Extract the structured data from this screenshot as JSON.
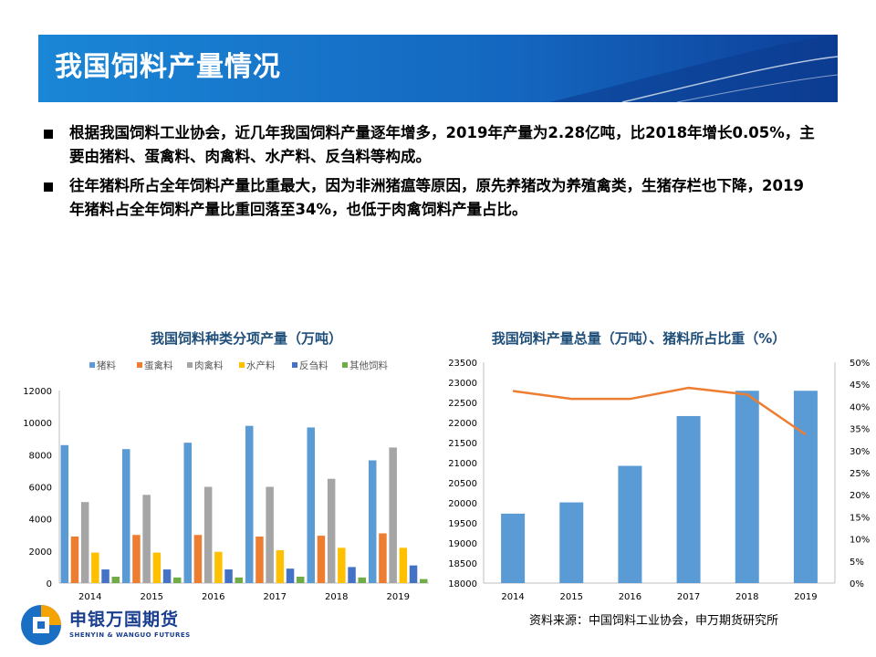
{
  "header": {
    "title": "我国饲料产量情况"
  },
  "bullets": [
    {
      "text": "根据我国饲料工业协会，近几年我国饲料产量逐年增多，2019年产量为2.28亿吨，比2018年增长0.05%，主要由猪料、蛋禽料、肉禽料、水产料、反刍料等构成。"
    },
    {
      "text": "往年猪料所占全年饲料产量比重最大，因为非洲猪瘟等原因，原先养猪改为养殖禽类，生猪存栏也下降，2019年猪料占全年饲料产量比重回落至34%，也低于肉禽饲料产量占比。"
    }
  ],
  "source": "资料来源：中国饲料工业协会，申万期货研究所",
  "logo": {
    "cn": "申银万国期货",
    "en": "SHENYIN & WANGUO FUTURES"
  },
  "chart_data": [
    {
      "type": "bar",
      "title": "我国饲料种类分项产量（万吨）",
      "categories": [
        "2014",
        "2015",
        "2016",
        "2017",
        "2018",
        "2019"
      ],
      "ylim": [
        0,
        12000
      ],
      "yticks": [
        0,
        2000,
        4000,
        6000,
        8000,
        10000,
        12000
      ],
      "grid": false,
      "legend": "top",
      "series": [
        {
          "name": "猪料",
          "color": "#5b9bd5",
          "values": [
            8600,
            8350,
            8750,
            9800,
            9700,
            7650
          ]
        },
        {
          "name": "蛋禽料",
          "color": "#ed7d31",
          "values": [
            2900,
            3000,
            3000,
            2900,
            2950,
            3100
          ]
        },
        {
          "name": "肉禽料",
          "color": "#a5a5a5",
          "values": [
            5050,
            5500,
            6000,
            6000,
            6500,
            8450
          ]
        },
        {
          "name": "水产料",
          "color": "#ffc000",
          "values": [
            1900,
            1900,
            1950,
            2050,
            2200,
            2200
          ]
        },
        {
          "name": "反刍料",
          "color": "#4472c4",
          "values": [
            850,
            850,
            850,
            900,
            1000,
            1100
          ]
        },
        {
          "name": "其他饲料",
          "color": "#70ad47",
          "values": [
            400,
            350,
            350,
            400,
            350,
            250
          ]
        }
      ]
    },
    {
      "type": "bar+line",
      "title": "我国饲料产量总量（万吨）、猪料所占比重（%）",
      "categories": [
        "2014",
        "2015",
        "2016",
        "2017",
        "2018",
        "2019"
      ],
      "bar": {
        "color": "#5b9bd5",
        "values": [
          19730,
          20010,
          20920,
          22160,
          22790,
          22790
        ],
        "ylim": [
          18000,
          23500
        ],
        "yticks": [
          18000,
          18500,
          19000,
          19500,
          20000,
          20500,
          21000,
          21500,
          22000,
          22500,
          23000,
          23500
        ]
      },
      "line": {
        "color": "#ed7d31",
        "values": [
          43.5,
          41.7,
          41.7,
          44.2,
          42.7,
          33.6
        ],
        "ylim": [
          0,
          50
        ],
        "yticks": [
          "0%",
          "5%",
          "10%",
          "15%",
          "20%",
          "25%",
          "30%",
          "35%",
          "40%",
          "45%",
          "50%"
        ]
      },
      "grid": false
    }
  ]
}
